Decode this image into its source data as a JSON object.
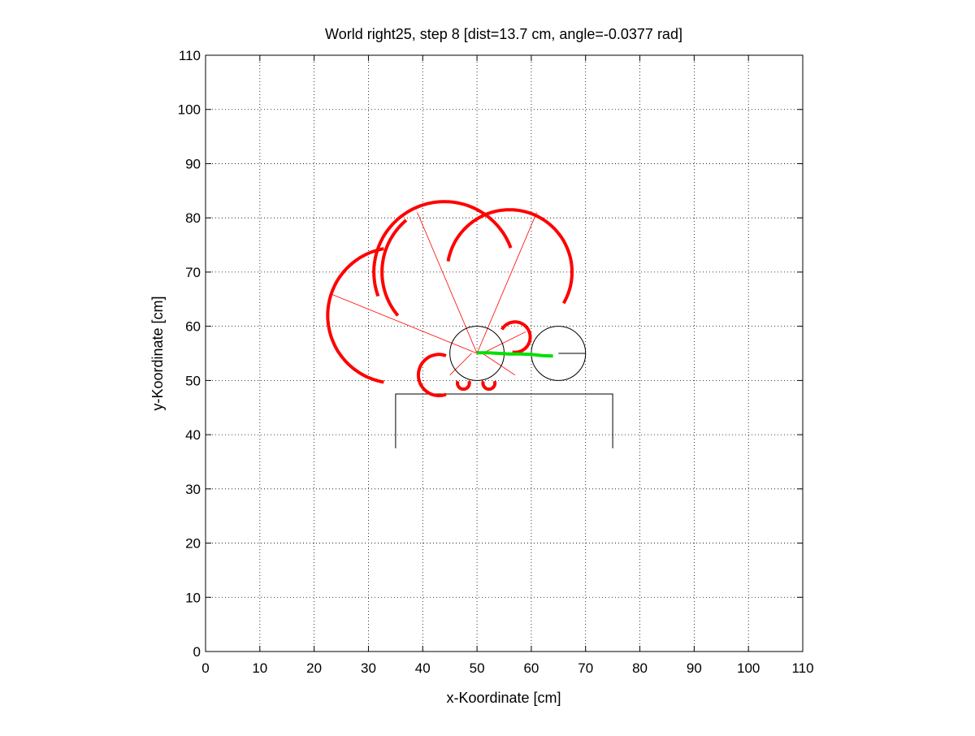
{
  "chart_data": {
    "type": "scatter",
    "title": "World right25, step 8 [dist=13.7 cm, angle=-0.0377 rad]",
    "xlabel": "x-Koordinate [cm]",
    "ylabel": "y-Koordinate [cm]",
    "xlim": [
      0,
      110
    ],
    "ylim": [
      0,
      110
    ],
    "xticks": [
      0,
      10,
      20,
      30,
      40,
      50,
      60,
      70,
      80,
      90,
      100,
      110
    ],
    "yticks": [
      0,
      10,
      20,
      30,
      40,
      50,
      60,
      70,
      80,
      90,
      100,
      110
    ],
    "grid": true,
    "colors": {
      "sensor_arcs": "#ff0000",
      "rays": "#ff0000",
      "path": "#00e000",
      "robot": "#000000",
      "walls": "#000000"
    },
    "robots": [
      {
        "cx": 50,
        "cy": 55,
        "r": 5
      },
      {
        "cx": 65,
        "cy": 55,
        "r": 5,
        "heading": [
          [
            65,
            55
          ],
          [
            70,
            55
          ]
        ]
      }
    ],
    "path": [
      [
        50,
        55.1
      ],
      [
        52,
        55.1
      ],
      [
        54,
        55.0
      ],
      [
        56,
        54.9
      ],
      [
        58,
        54.9
      ],
      [
        60,
        54.8
      ],
      [
        62,
        54.6
      ],
      [
        64,
        54.5
      ]
    ],
    "walls": [
      [
        [
          35,
          37.5
        ],
        [
          35,
          47.5
        ],
        [
          75,
          47.5
        ],
        [
          75,
          37.5
        ]
      ]
    ],
    "rays": [
      [
        [
          50,
          55
        ],
        [
          23,
          66
        ]
      ],
      [
        [
          50,
          55
        ],
        [
          39,
          81
        ]
      ],
      [
        [
          50,
          55
        ],
        [
          61,
          81
        ]
      ],
      [
        [
          51,
          55
        ],
        [
          59,
          59
        ]
      ],
      [
        [
          51,
          55
        ],
        [
          57,
          51
        ]
      ],
      [
        [
          49,
          55
        ],
        [
          45,
          51
        ]
      ]
    ],
    "sensor_arcs": [
      {
        "cx": 35,
        "cy": 62,
        "r": 12.5,
        "a1": 100,
        "a2": 260
      },
      {
        "cx": 45,
        "cy": 70,
        "r": 12.5,
        "a1": 130,
        "a2": 220
      },
      {
        "cx": 44,
        "cy": 70,
        "r": 13,
        "a1": 20,
        "a2": 200
      },
      {
        "cx": 56,
        "cy": 70,
        "r": 11.5,
        "a1": -30,
        "a2": 170
      },
      {
        "cx": 57,
        "cy": 58,
        "r": 2.8,
        "a1": -100,
        "a2": 150
      },
      {
        "cx": 43,
        "cy": 51,
        "r": 3.8,
        "a1": 70,
        "a2": 290
      },
      {
        "cx": 47.5,
        "cy": 49.5,
        "r": 1.1,
        "a1": 160,
        "a2": 380
      },
      {
        "cx": 52.2,
        "cy": 49.5,
        "r": 1.1,
        "a1": 160,
        "a2": 380
      }
    ]
  }
}
